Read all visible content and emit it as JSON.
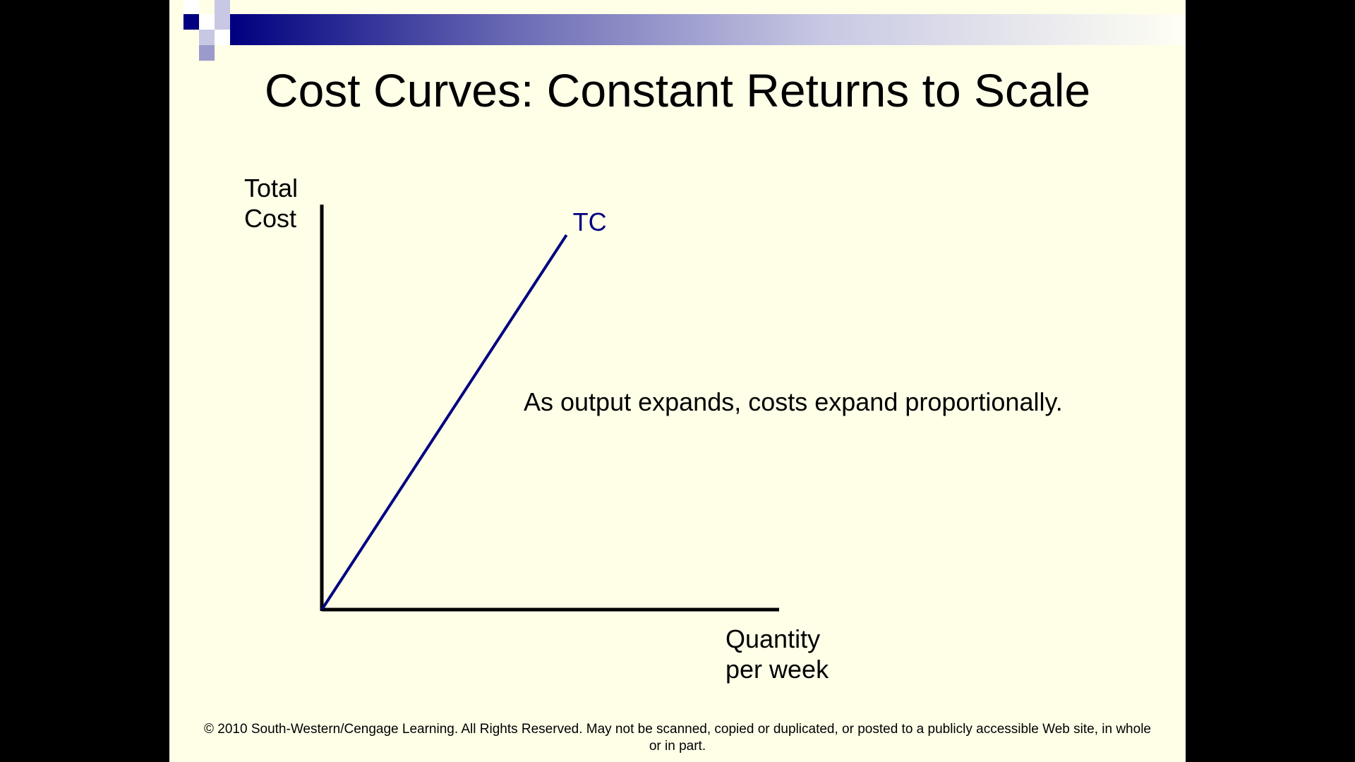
{
  "slide": {
    "title": "Cost Curves: Constant Returns to Scale",
    "annotation": "As output expands, costs expand proportionally.",
    "footer": "© 2010 South-Western/Cengage Learning. All Rights Reserved. May not be scanned, copied or duplicated, or posted to a publicly accessible Web site, in whole or in part."
  },
  "colors": {
    "background": "#FFFFE8",
    "accent": "#000080",
    "curve": "#000080",
    "axis": "#000000"
  },
  "chart_data": {
    "type": "line",
    "title": "",
    "ylabel_lines": [
      "Total",
      "Cost"
    ],
    "xlabel_lines": [
      "Quantity",
      "per week"
    ],
    "xlim": [
      0,
      100
    ],
    "ylim": [
      0,
      100
    ],
    "grid": false,
    "series": [
      {
        "name": "TC",
        "x": [
          0,
          53.5
        ],
        "y": [
          0,
          92.5
        ]
      }
    ]
  }
}
